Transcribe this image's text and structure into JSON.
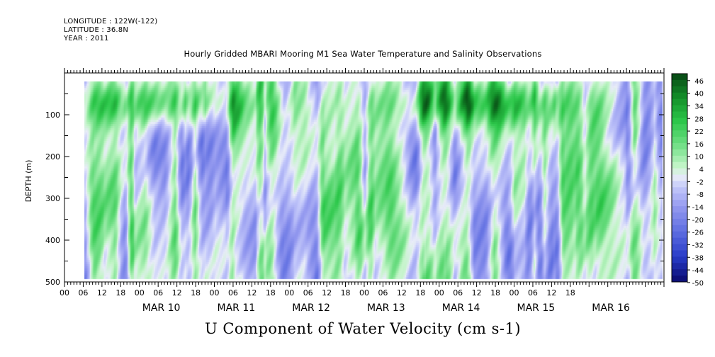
{
  "header": {
    "longitude": "LONGITUDE : 122W(-122)",
    "latitude": "LATITUDE : 36.8N",
    "year": "YEAR : 2011",
    "title": "Hourly Gridded MBARI Mooring M1 Sea Water Temperature and Salinity Observations"
  },
  "footer": {
    "variable_title": "U Component of Water Velocity (cm s-1)"
  },
  "colors": {
    "positive_dark": "#0a5a14",
    "positive_mid": "#22c744",
    "positive_light": "#b9f2c2",
    "neutral": "#e8ecf8",
    "negative_light": "#c8ccf8",
    "negative_mid": "#9ea0f2",
    "negative_dark": "#0b0b6e"
  },
  "chart_data": {
    "type": "heatmap",
    "title": "Hourly Gridded MBARI Mooring M1 Sea Water Temperature and Salinity Observations",
    "xlabel": "",
    "ylabel": "DEPTH (m)",
    "y_axis": {
      "label": "DEPTH (m)",
      "range": [
        0,
        500
      ],
      "inverted": true,
      "ticks": [
        100,
        200,
        300,
        400,
        500
      ],
      "labels": [
        "100",
        "200",
        "300",
        "400",
        "500"
      ]
    },
    "x_axis": {
      "start": "MAR 09 00",
      "end": "MAR 16 24",
      "hour_labels": [
        "00",
        "06",
        "12",
        "18",
        "00",
        "06",
        "12",
        "18",
        "00",
        "06",
        "12",
        "18",
        "00",
        "06",
        "12",
        "18",
        "00",
        "06",
        "12",
        "18",
        "00",
        "06",
        "12",
        "18",
        "00",
        "06",
        "12",
        "18"
      ],
      "day_labels": [
        "MAR 10",
        "MAR 11",
        "MAR 12",
        "MAR 13",
        "MAR 14",
        "MAR 15",
        "MAR 16"
      ]
    },
    "data_extent": {
      "x_start": "MAR 09 06",
      "x_end": "MAR 16 24",
      "depth_top": 20,
      "depth_bottom": 490
    },
    "colorbar": {
      "labels": [
        "46",
        "40",
        "34",
        "28",
        "22",
        "16",
        "10",
        "4",
        "-2",
        "-8",
        "-14",
        "-20",
        "-26",
        "-32",
        "-38",
        "-44",
        "-50"
      ],
      "min": -50,
      "max": 49,
      "step": 3
    }
  }
}
